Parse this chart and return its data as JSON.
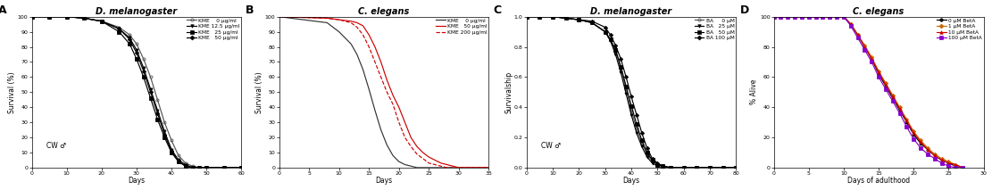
{
  "panel_A": {
    "title": "D. melanogaster",
    "xlabel": "Days",
    "ylabel": "Survival (%)",
    "annotation": "CW ♂",
    "xlim": [
      0,
      60
    ],
    "ylim": [
      0,
      100
    ],
    "xticks": [
      0,
      10,
      20,
      30,
      40,
      50,
      60
    ],
    "yticks": [
      0,
      10,
      20,
      30,
      40,
      50,
      60,
      70,
      80,
      90,
      100
    ],
    "legend": [
      "KME    0 μg/ml",
      "KME 12.5 μg/ml",
      "KME   25 μg/ml",
      "KME   50 μg/ml"
    ],
    "curves": [
      {
        "x": [
          0,
          5,
          10,
          15,
          20,
          25,
          28,
          30,
          32,
          34,
          36,
          38,
          40,
          42,
          44,
          46,
          48,
          50,
          55,
          60
        ],
        "y": [
          100,
          100,
          100,
          99,
          97,
          93,
          88,
          82,
          72,
          60,
          45,
          30,
          18,
          8,
          3,
          1,
          0,
          0,
          0,
          0
        ],
        "color": "#555555",
        "linestyle": "-",
        "marker": "o",
        "fillstyle": "none"
      },
      {
        "x": [
          0,
          5,
          10,
          15,
          20,
          25,
          28,
          30,
          32,
          34,
          36,
          38,
          40,
          42,
          44,
          46,
          48,
          50,
          55,
          60
        ],
        "y": [
          100,
          100,
          100,
          99,
          97,
          92,
          86,
          78,
          66,
          52,
          38,
          24,
          12,
          5,
          2,
          0,
          0,
          0,
          0,
          0
        ],
        "color": "#000000",
        "linestyle": "-",
        "marker": "v",
        "fillstyle": "full"
      },
      {
        "x": [
          0,
          5,
          10,
          15,
          20,
          25,
          28,
          30,
          32,
          34,
          36,
          38,
          40,
          42,
          44,
          46,
          48,
          50,
          55,
          60
        ],
        "y": [
          100,
          100,
          100,
          99,
          97,
          90,
          82,
          72,
          60,
          46,
          32,
          20,
          10,
          4,
          1,
          0,
          0,
          0,
          0,
          0
        ],
        "color": "#000000",
        "linestyle": "-",
        "marker": "s",
        "fillstyle": "full"
      },
      {
        "x": [
          0,
          5,
          10,
          15,
          20,
          25,
          28,
          30,
          32,
          34,
          36,
          38,
          40,
          42,
          44,
          46,
          48,
          50,
          55,
          60
        ],
        "y": [
          100,
          100,
          100,
          99,
          97,
          92,
          85,
          76,
          64,
          50,
          36,
          22,
          11,
          4,
          1,
          0,
          0,
          0,
          0,
          0
        ],
        "color": "#000000",
        "linestyle": "-",
        "marker": "D",
        "fillstyle": "full"
      }
    ]
  },
  "panel_B": {
    "title": "C. elegans",
    "xlabel": "Days",
    "ylabel": "Survival (%)",
    "xlim": [
      0,
      35
    ],
    "ylim": [
      0,
      100
    ],
    "xticks": [
      0,
      5,
      10,
      15,
      20,
      25,
      30,
      35
    ],
    "yticks": [
      0,
      10,
      20,
      30,
      40,
      50,
      60,
      70,
      80,
      90,
      100
    ],
    "legend": [
      "KME    0 μg/ml",
      "KME   50 μg/ml",
      "KME 200 μg/ml"
    ],
    "curves": [
      {
        "x": [
          0,
          8,
          10,
          12,
          13,
          14,
          15,
          16,
          17,
          18,
          19,
          20,
          21,
          22,
          23,
          25,
          30,
          35
        ],
        "y": [
          100,
          96,
          90,
          82,
          75,
          65,
          52,
          38,
          25,
          15,
          8,
          4,
          2,
          1,
          0,
          0,
          0,
          0
        ],
        "color": "#333333",
        "linestyle": "-",
        "marker": null
      },
      {
        "x": [
          0,
          8,
          10,
          12,
          13,
          14,
          15,
          16,
          17,
          18,
          19,
          20,
          21,
          22,
          23,
          24,
          25,
          26,
          27,
          28,
          29,
          30,
          32,
          35
        ],
        "y": [
          100,
          99,
          98,
          97,
          96,
          94,
          88,
          80,
          70,
          58,
          48,
          40,
          30,
          20,
          14,
          10,
          7,
          5,
          3,
          2,
          1,
          0,
          0,
          0
        ],
        "color": "#cc0000",
        "linestyle": "-",
        "marker": null
      },
      {
        "x": [
          0,
          8,
          10,
          12,
          13,
          14,
          15,
          16,
          17,
          18,
          19,
          20,
          21,
          22,
          23,
          24,
          25,
          26,
          27,
          28,
          30,
          35
        ],
        "y": [
          100,
          99,
          98,
          96,
          93,
          88,
          80,
          70,
          60,
          50,
          42,
          30,
          20,
          14,
          9,
          6,
          3,
          2,
          1,
          0,
          0,
          0
        ],
        "color": "#cc0000",
        "linestyle": "--",
        "marker": null
      }
    ]
  },
  "panel_C": {
    "title": "D. melanogaster",
    "xlabel": "Days",
    "ylabel": "Survivalship",
    "annotation": "CW ♂",
    "xlim": [
      0,
      80
    ],
    "ylim": [
      0,
      1
    ],
    "xticks": [
      0,
      10,
      20,
      30,
      40,
      50,
      60,
      70,
      80
    ],
    "yticks": [
      0,
      0.2,
      0.4,
      0.6,
      0.8,
      1
    ],
    "legend": [
      "BA     0 μM",
      "BA   25 μM",
      "BA   50 μM",
      "BA 100 μM"
    ],
    "curves": [
      {
        "x": [
          0,
          5,
          10,
          15,
          20,
          25,
          30,
          32,
          34,
          36,
          38,
          40,
          42,
          44,
          46,
          48,
          50,
          52,
          55,
          60,
          65,
          70,
          75,
          80
        ],
        "y": [
          1,
          1,
          1,
          0.99,
          0.98,
          0.96,
          0.9,
          0.85,
          0.77,
          0.66,
          0.52,
          0.38,
          0.26,
          0.16,
          0.09,
          0.04,
          0.02,
          0.01,
          0,
          0,
          0,
          0,
          0,
          0
        ],
        "color": "#555555",
        "linestyle": "-",
        "marker": "o",
        "fillstyle": "none"
      },
      {
        "x": [
          0,
          5,
          10,
          15,
          20,
          25,
          30,
          32,
          34,
          36,
          38,
          40,
          42,
          44,
          46,
          48,
          50,
          52,
          55,
          60,
          65,
          70,
          75,
          80
        ],
        "y": [
          1,
          1,
          1,
          0.99,
          0.98,
          0.96,
          0.9,
          0.84,
          0.75,
          0.63,
          0.49,
          0.35,
          0.23,
          0.14,
          0.07,
          0.03,
          0.01,
          0,
          0,
          0,
          0,
          0,
          0,
          0
        ],
        "color": "#000000",
        "linestyle": "-",
        "marker": "v",
        "fillstyle": "full"
      },
      {
        "x": [
          0,
          5,
          10,
          15,
          20,
          25,
          30,
          32,
          34,
          36,
          38,
          40,
          42,
          44,
          46,
          48,
          50,
          52,
          55,
          60,
          65,
          70,
          75,
          80
        ],
        "y": [
          1,
          1,
          1,
          0.99,
          0.98,
          0.96,
          0.9,
          0.85,
          0.78,
          0.67,
          0.54,
          0.41,
          0.29,
          0.18,
          0.1,
          0.05,
          0.02,
          0.01,
          0,
          0,
          0,
          0,
          0,
          0
        ],
        "color": "#000000",
        "linestyle": "-",
        "marker": "s",
        "fillstyle": "full"
      },
      {
        "x": [
          0,
          5,
          10,
          15,
          20,
          25,
          30,
          32,
          34,
          36,
          38,
          40,
          42,
          44,
          46,
          48,
          50,
          52,
          55,
          60,
          65,
          70,
          75,
          80
        ],
        "y": [
          1,
          1,
          1,
          0.99,
          0.98,
          0.97,
          0.93,
          0.88,
          0.81,
          0.72,
          0.6,
          0.47,
          0.35,
          0.23,
          0.13,
          0.06,
          0.03,
          0.01,
          0,
          0,
          0,
          0,
          0,
          0
        ],
        "color": "#000000",
        "linestyle": "-",
        "marker": "D",
        "fillstyle": "full"
      }
    ]
  },
  "panel_D": {
    "title": "C. elegans",
    "xlabel": "Days of adulthood",
    "ylabel": "% Alive",
    "xlim": [
      0,
      30
    ],
    "ylim": [
      0,
      100
    ],
    "xticks": [
      0,
      5,
      10,
      15,
      20,
      25,
      30
    ],
    "yticks": [
      0,
      20,
      40,
      60,
      80,
      100
    ],
    "legend": [
      "0 μM BetA",
      "1 μM BetA",
      "10 μM BetA",
      "100 μM BetA"
    ],
    "curves": [
      {
        "x": [
          0,
          1,
          2,
          3,
          4,
          5,
          6,
          7,
          8,
          9,
          10,
          11,
          12,
          13,
          14,
          15,
          16,
          17,
          18,
          19,
          20,
          21,
          22,
          23,
          24,
          25,
          26,
          27
        ],
        "y": [
          100,
          100,
          100,
          100,
          100,
          100,
          100,
          100,
          100,
          100,
          100,
          95,
          88,
          80,
          72,
          62,
          54,
          46,
          38,
          30,
          22,
          16,
          12,
          8,
          5,
          3,
          1,
          0
        ],
        "color": "#000000",
        "linestyle": "-",
        "marker": "o",
        "fillstyle": "full"
      },
      {
        "x": [
          0,
          1,
          2,
          3,
          4,
          5,
          6,
          7,
          8,
          9,
          10,
          11,
          12,
          13,
          14,
          15,
          16,
          17,
          18,
          19,
          20,
          21,
          22,
          23,
          24,
          25,
          26,
          27
        ],
        "y": [
          100,
          100,
          100,
          100,
          100,
          100,
          100,
          100,
          100,
          100,
          100,
          95,
          88,
          81,
          73,
          64,
          56,
          48,
          40,
          32,
          24,
          18,
          13,
          9,
          6,
          4,
          2,
          0
        ],
        "color": "#cc6600",
        "linestyle": "-",
        "marker": "D",
        "fillstyle": "full"
      },
      {
        "x": [
          0,
          1,
          2,
          3,
          4,
          5,
          6,
          7,
          8,
          9,
          10,
          11,
          12,
          13,
          14,
          15,
          16,
          17,
          18,
          19,
          20,
          21,
          22,
          23,
          24,
          25,
          26,
          27
        ],
        "y": [
          100,
          100,
          100,
          100,
          100,
          100,
          100,
          100,
          100,
          100,
          100,
          95,
          88,
          80,
          72,
          63,
          55,
          47,
          39,
          31,
          23,
          17,
          12,
          8,
          5,
          3,
          2,
          0
        ],
        "color": "#cc0000",
        "linestyle": "-",
        "marker": "^",
        "fillstyle": "full"
      },
      {
        "x": [
          0,
          1,
          2,
          3,
          4,
          5,
          6,
          7,
          8,
          9,
          10,
          11,
          12,
          13,
          14,
          15,
          16,
          17,
          18,
          19,
          20,
          21,
          22,
          23,
          24,
          25,
          26,
          27
        ],
        "y": [
          100,
          100,
          100,
          100,
          100,
          100,
          100,
          100,
          100,
          100,
          100,
          94,
          86,
          78,
          70,
          60,
          52,
          44,
          36,
          27,
          19,
          13,
          9,
          6,
          3,
          1,
          0,
          0
        ],
        "color": "#8800cc",
        "linestyle": "-",
        "marker": "s",
        "fillstyle": "full"
      }
    ]
  }
}
